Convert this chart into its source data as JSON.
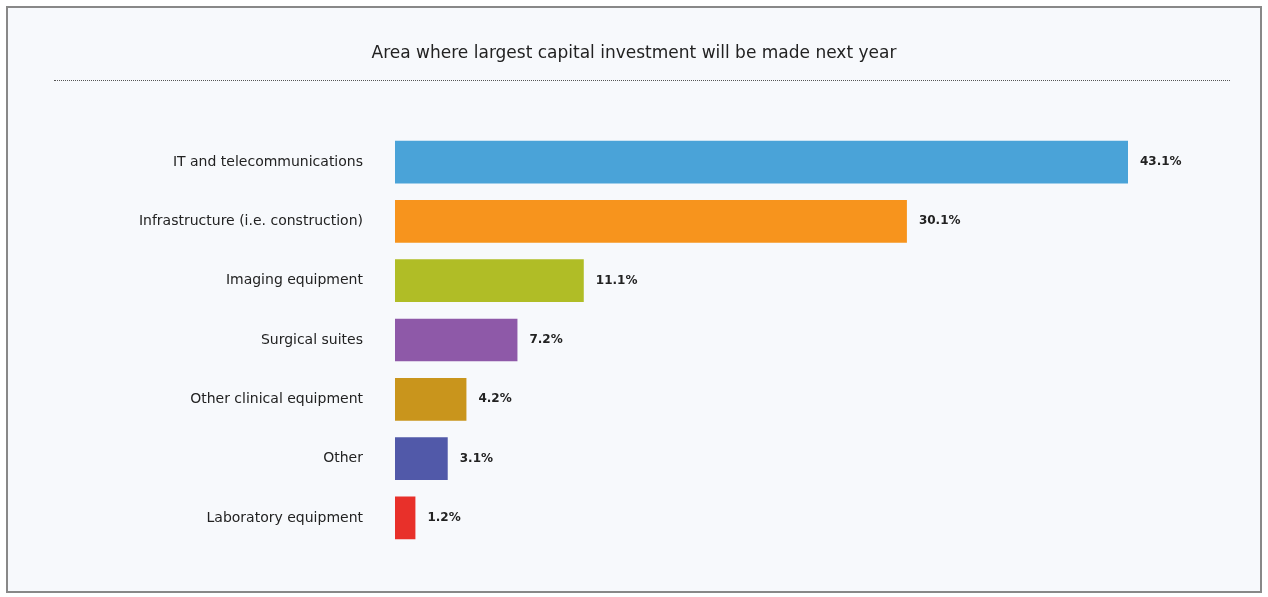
{
  "chart_data": {
    "type": "bar",
    "orientation": "horizontal",
    "title": "Area where largest capital investment will be made next year",
    "categories": [
      "IT and telecommunications",
      "Infrastructure (i.e. construction)",
      "Imaging equipment",
      "Surgical suites",
      "Other clinical equipment",
      "Other",
      "Laboratory equipment"
    ],
    "values": [
      43.1,
      30.1,
      11.1,
      7.2,
      4.2,
      3.1,
      1.2
    ],
    "colors": [
      "#4aa3d8",
      "#f7941d",
      "#b0bd26",
      "#8e59a8",
      "#c9951c",
      "#5159a9",
      "#e8302a"
    ],
    "value_labels": [
      "43.1%",
      "30.1%",
      "11.1%",
      "7.2%",
      "4.2%",
      "3.1%",
      "1.2%"
    ],
    "legend": false
  }
}
